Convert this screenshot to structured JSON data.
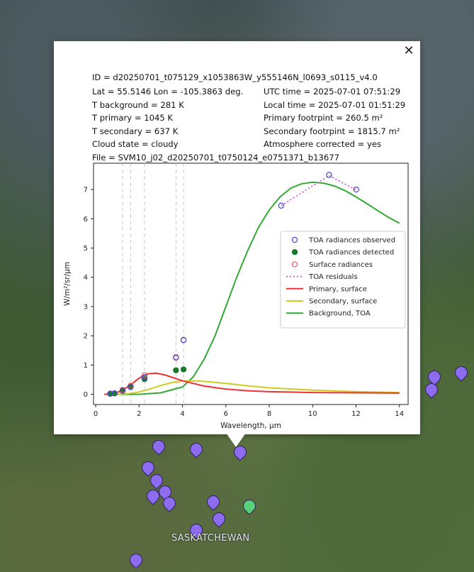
{
  "map": {
    "region_label": "SASKATCHEWAN"
  },
  "popup": {
    "close_icon": "close-icon",
    "close_glyph": "✕",
    "info": {
      "id": "ID = d20250701_t075129_x1053863W_y555146N_l0693_s0115_v4.0",
      "latlon": "Lat = 55.5146 Lon = -105.3863 deg.",
      "utc": "UTC time = 2025-07-01 07:51:29",
      "t_background": "T background = 281 K",
      "local": "Local time = 2025-07-01 01:51:29",
      "t_primary": "T primary = 1045 K",
      "primary_footprint": "Primary footrpint = 260.5 m²",
      "t_secondary": "T secondary = 637 K",
      "secondary_footprint": "Secondary footrpint = 1815.7 m²",
      "cloud": "Cloud state = cloudy",
      "atmo": "Atmosphere corrected = yes",
      "file": "File = SVM10_j02_d20250701_t0750124_e0751371_b13677"
    }
  },
  "chart_data": {
    "type": "line",
    "xlabel": "Wavelength, μm",
    "ylabel": "W/m²/sr/μm",
    "xlim": [
      -0.1,
      14.4
    ],
    "ylim": [
      -0.35,
      7.9
    ],
    "xticks": [
      0,
      2,
      4,
      6,
      8,
      10,
      12,
      14
    ],
    "yticks": [
      0,
      1,
      2,
      3,
      4,
      5,
      6,
      7
    ],
    "band_lines": [
      1.24,
      1.61,
      2.25,
      3.7,
      4.05
    ],
    "legend_position": "center-right",
    "colors": {
      "observed": "#4444dd",
      "detected": "#1a7a2a",
      "surface": "#ee5555",
      "residuals": "#cc44cc",
      "primary": "#ee3333",
      "secondary": "#cccc22",
      "background": "#33aa33"
    },
    "series": [
      {
        "name": "TOA radiances observed",
        "kind": "open-circle",
        "x": [
          0.67,
          0.87,
          1.24,
          1.61,
          2.25,
          3.7,
          4.05,
          8.55,
          10.76,
          12.01
        ],
        "y": [
          0.02,
          0.03,
          0.12,
          0.25,
          0.58,
          1.25,
          1.85,
          6.45,
          7.5,
          7.0
        ]
      },
      {
        "name": "TOA radiances detected",
        "kind": "filled-circle",
        "x": [
          0.67,
          0.87,
          1.24,
          1.61,
          2.25,
          3.7,
          4.05
        ],
        "y": [
          0.02,
          0.03,
          0.12,
          0.25,
          0.52,
          0.82,
          0.85
        ]
      },
      {
        "name": "Surface radiances",
        "kind": "open-circle",
        "x": [
          0.67,
          0.87,
          1.24,
          1.61,
          2.25,
          3.7,
          4.05
        ],
        "y": [
          0.02,
          0.03,
          0.15,
          0.29,
          0.65,
          1.27,
          1.86
        ]
      },
      {
        "name": "TOA residuals",
        "kind": "dotted",
        "x": [
          8.55,
          10.76,
          12.01
        ],
        "y": [
          6.45,
          7.48,
          6.98
        ]
      },
      {
        "name": "Primary, surface",
        "kind": "line",
        "x": [
          0.4,
          0.8,
          1.2,
          1.6,
          2.0,
          2.4,
          2.8,
          3.2,
          3.6,
          4.0,
          5.0,
          6.0,
          7.0,
          8.0,
          10.0,
          12.0,
          14.0
        ],
        "y": [
          0.0,
          0.02,
          0.12,
          0.32,
          0.55,
          0.7,
          0.72,
          0.66,
          0.56,
          0.46,
          0.28,
          0.18,
          0.12,
          0.09,
          0.06,
          0.05,
          0.04
        ]
      },
      {
        "name": "Secondary, surface",
        "kind": "line",
        "x": [
          0.4,
          1.0,
          1.5,
          2.0,
          2.5,
          3.0,
          3.5,
          4.0,
          4.5,
          5.0,
          6.0,
          7.0,
          8.0,
          10.0,
          12.0,
          14.0
        ],
        "y": [
          0.0,
          0.0,
          0.02,
          0.08,
          0.18,
          0.3,
          0.4,
          0.45,
          0.46,
          0.44,
          0.37,
          0.29,
          0.22,
          0.14,
          0.09,
          0.06
        ]
      },
      {
        "name": "Background, TOA",
        "kind": "line",
        "x": [
          0.4,
          2.0,
          3.0,
          4.0,
          4.5,
          5.0,
          5.5,
          6.0,
          6.5,
          7.0,
          7.5,
          8.0,
          8.5,
          9.0,
          9.5,
          10.0,
          10.5,
          11.0,
          11.5,
          12.0,
          12.5,
          13.0,
          13.5,
          14.0
        ],
        "y": [
          0.0,
          0.0,
          0.05,
          0.25,
          0.6,
          1.2,
          2.0,
          3.0,
          4.0,
          4.9,
          5.7,
          6.3,
          6.75,
          7.05,
          7.2,
          7.25,
          7.22,
          7.12,
          6.96,
          6.75,
          6.52,
          6.28,
          6.05,
          5.85
        ]
      }
    ]
  }
}
